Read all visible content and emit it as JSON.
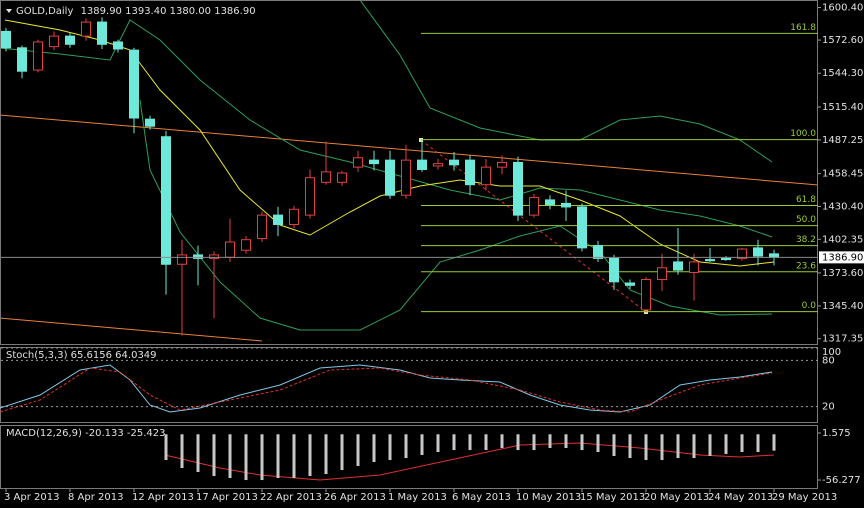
{
  "chart_data": {
    "type": "candlestick",
    "title": "GOLD,Daily",
    "ohlc_readout": [
      "1389.90",
      "1393.40",
      "1380.00",
      "1386.90"
    ],
    "categories": [
      "3 Apr 2013",
      null,
      null,
      null,
      "8 Apr 2013",
      null,
      null,
      null,
      "12 Apr 2013",
      null,
      null,
      null,
      "17 Apr 2013",
      null,
      null,
      null,
      "22 Apr 2013",
      null,
      null,
      null,
      "26 Apr 2013",
      null,
      null,
      null,
      "1 May 2013",
      null,
      null,
      null,
      "6 May 2013",
      null,
      null,
      null,
      "10 May 2013",
      null,
      null,
      null,
      "15 May 2013",
      null,
      null,
      null,
      "20 May 2013",
      null,
      null,
      null,
      "24 May 2013",
      null,
      null,
      null,
      "29 May 2013"
    ],
    "open": [
      1580,
      1566,
      1547,
      1567,
      1576,
      1576,
      1588,
      1571,
      1564,
      1505,
      1490,
      1381,
      1389,
      1386,
      1387,
      1393,
      1403,
      1423,
      1415,
      1423,
      1451,
      1451,
      1464,
      1470,
      1470,
      1440,
      1470,
      1465,
      1470,
      1470,
      1449,
      1464,
      1468,
      1423,
      1436,
      1433,
      1430,
      1397,
      1386,
      1365,
      1342,
      1368,
      1383,
      1374,
      1385,
      1386,
      1386,
      1395,
      1389.9
    ],
    "high": [
      1583,
      1568,
      1573,
      1580,
      1579,
      1591,
      1592,
      1573,
      1566,
      1508,
      1495,
      1402,
      1397,
      1392,
      1420,
      1405,
      1426,
      1430,
      1431,
      1462,
      1486,
      1461,
      1478,
      1478,
      1478,
      1483,
      1488,
      1471,
      1477,
      1474,
      1471,
      1474,
      1473,
      1441,
      1440,
      1444,
      1433,
      1401,
      1389,
      1368,
      1370,
      1390,
      1412,
      1390,
      1395,
      1388,
      1395,
      1402,
      1393.4
    ],
    "low": [
      1563,
      1540,
      1545,
      1564,
      1566,
      1572,
      1565,
      1562,
      1493,
      1496,
      1355,
      1320,
      1363,
      1335,
      1383,
      1390,
      1400,
      1405,
      1412,
      1420,
      1449,
      1448,
      1460,
      1461,
      1437,
      1437,
      1460,
      1462,
      1461,
      1440,
      1444,
      1458,
      1418,
      1421,
      1428,
      1418,
      1392,
      1383,
      1359,
      1360,
      1340,
      1358,
      1372,
      1350,
      1383,
      1384,
      1384,
      1380,
      1380
    ],
    "close": [
      1566,
      1546,
      1571,
      1576,
      1569,
      1588,
      1569,
      1565,
      1506,
      1499,
      1381,
      1389,
      1386,
      1389,
      1400,
      1402,
      1423,
      1415,
      1428,
      1455,
      1460,
      1459,
      1472,
      1467,
      1440,
      1470,
      1462,
      1467,
      1466,
      1449,
      1464,
      1468,
      1423,
      1438,
      1432,
      1430,
      1395,
      1386,
      1366,
      1363,
      1368,
      1378,
      1376,
      1383,
      1384,
      1385,
      1394,
      1388,
      1386.9
    ],
    "up_color": "#000000",
    "up_outline": "#e04040",
    "down_color": "#6ee8d8",
    "ylim": [
      1312,
      1606
    ],
    "yticks": [
      {
        "value": 1600.4,
        "label": "1600.40"
      },
      {
        "value": 1572.6,
        "label": "1572.60"
      },
      {
        "value": 1544.3,
        "label": "1544.30"
      },
      {
        "value": 1515.4,
        "label": "1515.40"
      },
      1487.25,
      1458.45,
      {
        "value": 1430.4,
        "label": "1430.40"
      },
      1402.35,
      {
        "value": 1373.6,
        "label": "1373.60"
      },
      {
        "value": 1345.4,
        "label": "1345.40"
      },
      1317.35
    ],
    "last_price": {
      "value": 1386.9,
      "label": "1386.90"
    },
    "fib_color": "#9acd32",
    "fib_levels": [
      {
        "label": "161.8",
        "price": 1578.3
      },
      {
        "label": "100.0",
        "price": 1487.5
      },
      {
        "label": "61.8",
        "price": 1431.2
      },
      {
        "label": "50.0",
        "price": 1414
      },
      {
        "label": "38.2",
        "price": 1396.9
      },
      {
        "label": "23.6",
        "price": 1374.6
      },
      {
        "label": "0.0",
        "price": 1340.5
      }
    ],
    "stoch": {
      "label": "Stoch(5,3,3) 65.6156 64.0349",
      "ylim": [
        0,
        100
      ],
      "yticks": [
        100,
        80,
        20
      ]
    },
    "macd": {
      "label": "MACD(12,26,9) -20.133 -25.423",
      "color": "#c8c8c8",
      "ylim": [
        -66.1,
        10.2
      ],
      "yticks": [
        1.575,
        -56.277
      ],
      "values": [
        null,
        null,
        null,
        null,
        null,
        null,
        null,
        null,
        null,
        null,
        -31.7,
        -41.5,
        -46.4,
        -51.4,
        -53.8,
        -56.3,
        -56.3,
        -53.8,
        -53.8,
        -51.4,
        -48.9,
        -44,
        -39,
        -34.1,
        -31.7,
        -29.2,
        -25.5,
        -21.8,
        -19.4,
        -19.4,
        -19.4,
        -16.9,
        -19.4,
        -19.4,
        -16.9,
        -16.9,
        -19.4,
        -21.8,
        -26.7,
        -29.2,
        -31.7,
        -31.7,
        -29.2,
        -29.2,
        -26.7,
        -24.2,
        -21.8,
        -21.8,
        -20.1
      ]
    }
  }
}
